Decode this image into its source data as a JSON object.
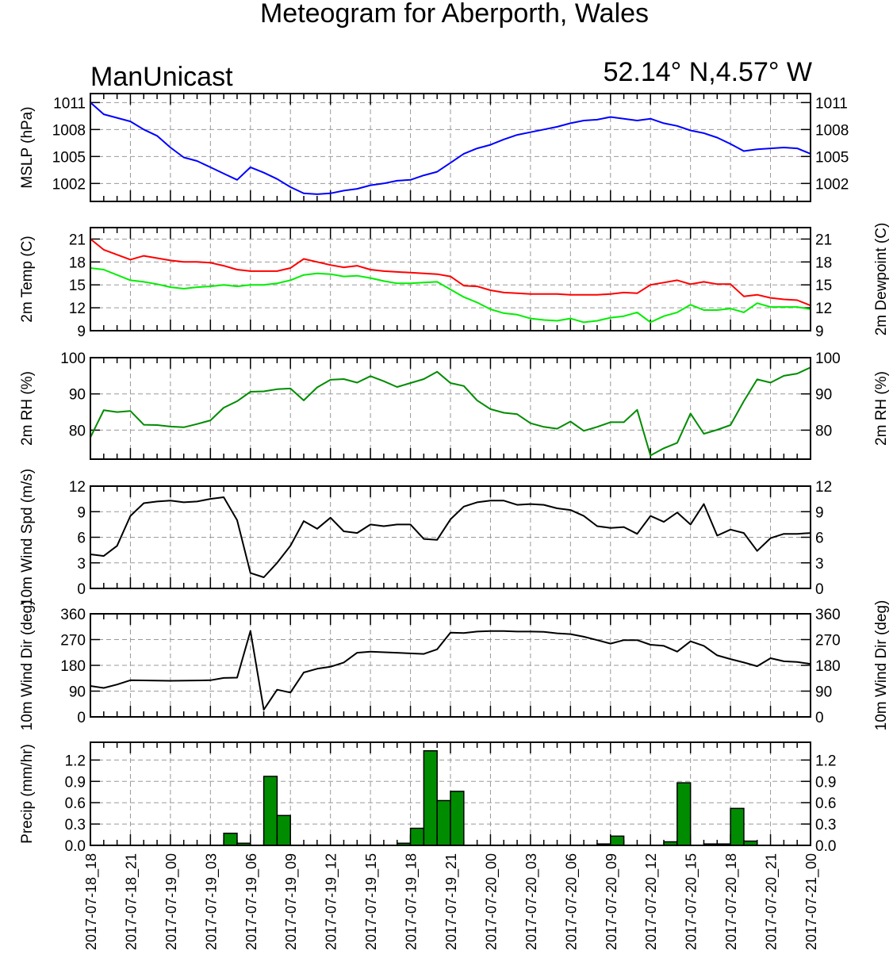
{
  "title": "Meteogram for Aberporth, Wales",
  "subtitle_left": "ManUnicast",
  "subtitle_right": "52.14° N,4.57° W",
  "x_ticks": [
    "2017-07-18_18",
    "2017-07-18_21",
    "2017-07-19_00",
    "2017-07-19_03",
    "2017-07-19_06",
    "2017-07-19_09",
    "2017-07-19_12",
    "2017-07-19_15",
    "2017-07-19_18",
    "2017-07-19_21",
    "2017-07-20_00",
    "2017-07-20_03",
    "2017-07-20_06",
    "2017-07-20_09",
    "2017-07-20_12",
    "2017-07-20_15",
    "2017-07-20_18",
    "2017-07-20_21",
    "2017-07-21_00"
  ],
  "chart_data": [
    {
      "type": "line",
      "xlim": [
        0,
        54
      ],
      "ylabel": "MSLP (hPa)",
      "ylim": [
        1000,
        1012
      ],
      "yticks": [
        1002,
        1005,
        1008,
        1011
      ],
      "grid": true,
      "series": [
        {
          "color": "#0000ff",
          "x": [
            0,
            1,
            3,
            4,
            5,
            6,
            7,
            8,
            9,
            10,
            11,
            12,
            13,
            14,
            15,
            16,
            17,
            18,
            19,
            20,
            21,
            22,
            23,
            24,
            25,
            26,
            27,
            28,
            29,
            30,
            31,
            32,
            33,
            34,
            35,
            36,
            37,
            38,
            39,
            40,
            41,
            42,
            43,
            44,
            45,
            46,
            47,
            48,
            49,
            50,
            51,
            52,
            53,
            54
          ],
          "values": [
            1011,
            1009.7,
            1008.9,
            1008.0,
            1007.3,
            1006.0,
            1004.9,
            1004.5,
            1003.8,
            1003.1,
            1002.4,
            1003.8,
            1003.2,
            1002.5,
            1001.6,
            1000.9,
            1000.8,
            1000.9,
            1001.2,
            1001.4,
            1001.8,
            1002.0,
            1002.3,
            1002.4,
            1002.9,
            1003.3,
            1004.3,
            1005.3,
            1005.9,
            1006.3,
            1006.9,
            1007.4,
            1007.7,
            1008.0,
            1008.3,
            1008.7,
            1009.0,
            1009.1,
            1009.4,
            1009.2,
            1009.0,
            1009.2,
            1008.7,
            1008.4,
            1007.9,
            1007.6,
            1007.1,
            1006.4,
            1005.6,
            1005.8,
            1005.9,
            1006.0,
            1005.9,
            1005.3
          ]
        }
      ]
    },
    {
      "type": "line",
      "xlim": [
        0,
        54
      ],
      "ylabel": "2m Temp (C)",
      "ylabel_right": "2m Dewpoint (C)",
      "ylim": [
        9,
        22.5
      ],
      "yticks": [
        9,
        12,
        15,
        18,
        21
      ],
      "grid": true,
      "series": [
        {
          "color": "#ff0000",
          "x": [
            0,
            1,
            3,
            4,
            5,
            6,
            7,
            8,
            9,
            10,
            11,
            12,
            13,
            14,
            15,
            16,
            17,
            18,
            19,
            20,
            21,
            22,
            23,
            24,
            25,
            26,
            27,
            28,
            29,
            30,
            31,
            32,
            33,
            34,
            35,
            36,
            37,
            38,
            39,
            40,
            41,
            42,
            43,
            44,
            45,
            46,
            47,
            48,
            49,
            50,
            51,
            52,
            53,
            54
          ],
          "values": [
            21.0,
            19.6,
            18.3,
            18.8,
            18.5,
            18.2,
            18.0,
            18.0,
            17.9,
            17.5,
            17.0,
            16.8,
            16.8,
            16.8,
            17.2,
            18.4,
            18.0,
            17.6,
            17.3,
            17.5,
            17.0,
            16.8,
            16.7,
            16.6,
            16.5,
            16.4,
            16.1,
            14.9,
            14.8,
            14.3,
            14.0,
            13.9,
            13.8,
            13.8,
            13.8,
            13.7,
            13.7,
            13.7,
            13.8,
            14.0,
            13.9,
            15.0,
            15.3,
            15.6,
            15.1,
            15.4,
            15.1,
            15.1,
            13.5,
            13.7,
            13.3,
            13.1,
            13.0,
            12.3
          ]
        },
        {
          "color": "#00ee00",
          "x": [
            0,
            1,
            3,
            4,
            5,
            6,
            7,
            8,
            9,
            10,
            11,
            12,
            13,
            14,
            15,
            16,
            17,
            18,
            19,
            20,
            21,
            22,
            23,
            24,
            25,
            26,
            27,
            28,
            29,
            30,
            31,
            32,
            33,
            34,
            35,
            36,
            37,
            38,
            39,
            40,
            41,
            42,
            43,
            44,
            45,
            46,
            47,
            48,
            49,
            50,
            51,
            52,
            53,
            54
          ],
          "values": [
            17.2,
            17.0,
            15.6,
            15.4,
            15.1,
            14.7,
            14.5,
            14.7,
            14.8,
            15.0,
            14.8,
            15.0,
            15.0,
            15.2,
            15.6,
            16.3,
            16.5,
            16.4,
            16.1,
            16.2,
            15.9,
            15.5,
            15.2,
            15.2,
            15.3,
            15.4,
            14.4,
            13.4,
            12.7,
            11.8,
            11.3,
            11.1,
            10.6,
            10.4,
            10.3,
            10.6,
            10.1,
            10.3,
            10.7,
            10.9,
            11.4,
            10.1,
            10.9,
            11.4,
            12.4,
            11.7,
            11.7,
            11.9,
            11.4,
            12.6,
            12.1,
            12.1,
            12.1,
            11.8
          ]
        }
      ]
    },
    {
      "type": "line",
      "xlim": [
        0,
        54
      ],
      "ylabel": "2m RH (%)",
      "ylim": [
        72,
        100
      ],
      "yticks": [
        80,
        90,
        100
      ],
      "grid": true,
      "series": [
        {
          "color": "#008c00",
          "x": [
            0,
            1,
            2,
            3,
            4,
            5,
            6,
            7,
            8,
            9,
            10,
            11,
            12,
            13,
            14,
            15,
            16,
            17,
            18,
            19,
            20,
            21,
            22,
            23,
            24,
            25,
            26,
            27,
            28,
            29,
            30,
            31,
            32,
            33,
            34,
            35,
            36,
            37,
            38,
            39,
            40,
            41,
            42,
            43,
            44,
            45,
            46,
            47,
            48,
            49,
            50,
            51,
            52,
            53,
            54
          ],
          "values": [
            78,
            85.5,
            85,
            85.3,
            81.5,
            81.4,
            81,
            80.8,
            81.7,
            82.7,
            86.2,
            88,
            90.6,
            90.7,
            91.3,
            91.5,
            88.2,
            91.8,
            93.9,
            94.1,
            93.1,
            94.9,
            93.5,
            91.9,
            93,
            94.1,
            96.1,
            93,
            92.2,
            88.2,
            85.8,
            84.8,
            84.4,
            81.9,
            80.9,
            80.4,
            82.4,
            79.8,
            80.9,
            82.2,
            82.2,
            85.6,
            73,
            75,
            76.5,
            84.6,
            79,
            80.1,
            81.4,
            88,
            94,
            93.1,
            95,
            95.6,
            97.3
          ]
        }
      ]
    },
    {
      "type": "line",
      "xlim": [
        0,
        54
      ],
      "ylabel": "10m Wind Spd (m/s)",
      "ylim": [
        0,
        12
      ],
      "yticks": [
        0,
        3,
        6,
        9,
        12
      ],
      "grid": true,
      "series": [
        {
          "color": "#000000",
          "x": [
            0,
            1,
            2,
            3,
            4,
            5,
            6,
            7,
            8,
            9,
            10,
            11,
            12,
            13,
            14,
            15,
            16,
            17,
            18,
            19,
            20,
            21,
            22,
            23,
            24,
            25,
            26,
            27,
            28,
            29,
            30,
            31,
            32,
            33,
            34,
            35,
            36,
            37,
            38,
            39,
            40,
            41,
            42,
            43,
            44,
            45,
            46,
            47,
            48,
            49,
            50,
            51,
            52,
            53,
            54
          ],
          "values": [
            4.0,
            3.8,
            5.0,
            8.5,
            10.0,
            10.2,
            10.3,
            10.1,
            10.2,
            10.5,
            10.7,
            8.0,
            1.8,
            1.3,
            3.0,
            5.0,
            7.9,
            7.0,
            8.3,
            6.7,
            6.5,
            7.5,
            7.3,
            7.5,
            7.5,
            5.8,
            5.7,
            8.1,
            9.6,
            10.1,
            10.3,
            10.3,
            9.8,
            9.9,
            9.8,
            9.4,
            9.2,
            8.5,
            7.3,
            7.1,
            7.2,
            6.4,
            8.5,
            7.8,
            8.9,
            7.5,
            9.9,
            6.2,
            6.9,
            6.5,
            4.4,
            5.9,
            6.4,
            6.4,
            6.5
          ]
        }
      ]
    },
    {
      "type": "line",
      "xlim": [
        0,
        54
      ],
      "ylabel": "10m Wind Dir (deg)",
      "ylim": [
        0,
        360
      ],
      "yticks": [
        0,
        90,
        180,
        270,
        360
      ],
      "grid": true,
      "series": [
        {
          "color": "#000000",
          "x": [
            0,
            1,
            2,
            3,
            6,
            9,
            10,
            11,
            12,
            13,
            14,
            15,
            16,
            17,
            18,
            19,
            20,
            21,
            25,
            26,
            27,
            28,
            29,
            30,
            31,
            32,
            33,
            34,
            35,
            36,
            37,
            38,
            39,
            40,
            41,
            42,
            43,
            44,
            45,
            46,
            47,
            48,
            49,
            50,
            51,
            52,
            53,
            54
          ],
          "values": [
            108,
            101,
            113,
            128,
            126,
            128,
            136,
            137,
            300,
            25,
            95,
            85,
            155,
            168,
            175,
            190,
            224,
            228,
            220,
            236,
            294,
            293,
            298,
            300,
            300,
            298,
            298,
            297,
            292,
            289,
            280,
            268,
            256,
            268,
            268,
            252,
            248,
            228,
            264,
            248,
            215,
            202,
            190,
            177,
            205,
            194,
            192,
            185
          ]
        }
      ]
    },
    {
      "type": "bar",
      "xlim": [
        0,
        54
      ],
      "ylabel": "Precip (mm/hr)",
      "ylim": [
        0,
        1.45
      ],
      "yticks": [
        0.0,
        0.3,
        0.6,
        0.9,
        1.2
      ],
      "ytick_labels": [
        "0.0",
        "0.3",
        "0.6",
        "0.9",
        "1.2"
      ],
      "grid": true,
      "series": [
        {
          "color": "#008c00",
          "x": [
            11,
            12,
            14,
            15,
            24,
            25,
            26,
            27,
            28,
            39,
            40,
            44,
            45,
            47,
            48,
            49,
            50
          ],
          "values": [
            0.17,
            0.03,
            0.97,
            0.42,
            0.03,
            0.24,
            1.33,
            0.63,
            0.76,
            0.02,
            0.13,
            0.05,
            0.88,
            0.02,
            0.02,
            0.52,
            0.06
          ]
        }
      ]
    }
  ]
}
